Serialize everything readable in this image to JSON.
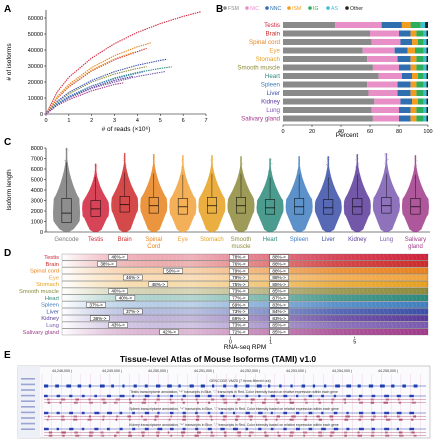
{
  "panels": {
    "A": {
      "letter": "A",
      "ylabel": "# of isoforms",
      "xlabel": "# of reads (×10⁶)",
      "yticks": [
        "0",
        "10000",
        "20000",
        "30000",
        "40000",
        "50000",
        "60000"
      ],
      "xticks": [
        "0",
        "1",
        "2",
        "3",
        "4",
        "5",
        "6",
        "7"
      ]
    },
    "B": {
      "letter": "B",
      "legend": [
        {
          "label": "FSM",
          "color": "#8a8a8a"
        },
        {
          "label": "NIC",
          "color": "#e88fc8"
        },
        {
          "label": "NNC",
          "color": "#2f6fb0"
        },
        {
          "label": "ISM",
          "color": "#f39c1f"
        },
        {
          "label": "IG",
          "color": "#2fae5a"
        },
        {
          "label": "AS",
          "color": "#3bc0d6"
        },
        {
          "label": "Other",
          "color": "#222222"
        }
      ],
      "xlabel": "Percent",
      "xticks": [
        "0",
        "20",
        "40",
        "60",
        "80",
        "100"
      ]
    },
    "C": {
      "letter": "C",
      "ylabel": "Isoform length",
      "yticks": [
        "0",
        "1000",
        "2000",
        "3000",
        "4000",
        "5000",
        "6000",
        "7000",
        "8000"
      ]
    },
    "D": {
      "letter": "D",
      "xlabel": "RNA-seq RPM",
      "xticks": [
        "0",
        "1",
        "5"
      ]
    },
    "E": {
      "letter": "E",
      "title": "Tissue-level Atlas of Mouse Isoforms (TAMI) v1.0",
      "track_label": "GENCODE VM25 (7 items filtered out)",
      "annotations": [
        "Testis transcriptome annotation, \"+\" transcripts in Blue, \"-\" transcripts in Red. Color intensity based on relative expression within each gene",
        "Spleen transcriptome annotation, \"+\" transcripts in Blue, \"-\" transcripts in Red. Color intensity based on relative expression within each gene",
        "Kidney transcriptome annotation, \"+\" transcripts in Blue, \"-\" transcripts in Red. Color intensity based on relative expression within each gene"
      ],
      "coords": [
        "44,246,000 |",
        "44,249,000 |",
        "44,250,000 |",
        "44,251,000 |",
        "44,252,000 |",
        "44,253,000 |",
        "44,254,000 |",
        "44,255,000 |"
      ]
    }
  },
  "chart_data": [
    {
      "panel": "A",
      "type": "line",
      "xlabel": "# of reads (×10⁶)",
      "ylabel": "# of isoforms",
      "xlim": [
        0,
        7
      ],
      "ylim": [
        0,
        65000
      ],
      "series": [
        {
          "color": "#d0233a",
          "x": [
            0,
            0.5,
            1,
            2,
            3,
            4,
            5,
            6,
            6.8
          ],
          "y": [
            0,
            14000,
            23000,
            35000,
            44000,
            51000,
            56500,
            61000,
            64000
          ]
        },
        {
          "color": "#e8821c",
          "x": [
            0,
            0.5,
            1,
            2,
            3,
            4,
            4.6
          ],
          "y": [
            0,
            11000,
            18500,
            29000,
            36500,
            42000,
            44500
          ]
        },
        {
          "color": "#cc2a2a",
          "x": [
            0,
            0.5,
            1,
            2,
            3,
            4,
            4.4
          ],
          "y": [
            0,
            10000,
            17000,
            27000,
            34000,
            39000,
            41000
          ]
        },
        {
          "color": "#f1a23c",
          "x": [
            0,
            0.5,
            1,
            2,
            3,
            3.8
          ],
          "y": [
            0,
            10500,
            17500,
            27500,
            34500,
            38500
          ]
        },
        {
          "color": "#3a4fa8",
          "x": [
            0,
            0.5,
            1,
            2,
            3,
            4,
            5,
            5.3
          ],
          "y": [
            0,
            8000,
            13500,
            21000,
            26500,
            30500,
            33500,
            34200
          ]
        },
        {
          "color": "#8c8a3a",
          "x": [
            0,
            0.5,
            1,
            2,
            3,
            4,
            4.4
          ],
          "y": [
            0,
            7500,
            12500,
            20000,
            25000,
            28500,
            29600
          ]
        },
        {
          "color": "#2b8a7a",
          "x": [
            0,
            0.5,
            1,
            2,
            3,
            4,
            5,
            5.5
          ],
          "y": [
            0,
            6500,
            11000,
            17500,
            22500,
            26000,
            28500,
            29500
          ]
        },
        {
          "color": "#5a3a9a",
          "x": [
            0,
            0.5,
            1,
            2,
            3,
            3.8
          ],
          "y": [
            0,
            6000,
            10500,
            16500,
            21000,
            23500
          ]
        },
        {
          "color": "#7a5ab0",
          "x": [
            0,
            0.5,
            1,
            2,
            3,
            4,
            5,
            5.2
          ],
          "y": [
            0,
            6000,
            10000,
            16000,
            20000,
            23500,
            26000,
            26500
          ]
        },
        {
          "color": "#3f7ec0",
          "x": [
            0,
            0.5,
            1,
            2,
            3,
            4,
            4.3
          ],
          "y": [
            0,
            6500,
            11000,
            17500,
            22000,
            25500,
            26500
          ]
        },
        {
          "color": "#a03a8a",
          "x": [
            0,
            0.5,
            1,
            2,
            3,
            3.4
          ],
          "y": [
            0,
            5500,
            9000,
            14500,
            18500,
            19500
          ]
        }
      ]
    },
    {
      "panel": "B",
      "type": "bar",
      "orientation": "horizontal",
      "stacked": true,
      "xlabel": "Percent",
      "xlim": [
        0,
        100
      ],
      "categories": [
        "Testis",
        "Brain",
        "Spinal cord",
        "Eye",
        "Stomach",
        "Smooth muscle",
        "Heart",
        "Spleen",
        "Liver",
        "Kidney",
        "Lung",
        "Salivary gland"
      ],
      "category_colors": [
        "#d0233a",
        "#cc2a2a",
        "#e8821c",
        "#f1a23c",
        "#e6a020",
        "#8c8a3a",
        "#2b8a7a",
        "#3f7ec0",
        "#3a4fa8",
        "#5a3a9a",
        "#7a5ab0",
        "#a03a8a"
      ],
      "series": [
        {
          "name": "FSM",
          "color": "#8a8a8a",
          "values": [
            36,
            60,
            61,
            55,
            58,
            62,
            66,
            58,
            59,
            63,
            61,
            62
          ]
        },
        {
          "name": "NIC",
          "color": "#e88fc8",
          "values": [
            32,
            20,
            20,
            22,
            21,
            18,
            16,
            21,
            20,
            18,
            19,
            18
          ]
        },
        {
          "name": "NNC",
          "color": "#2f6fb0",
          "values": [
            14,
            8,
            8,
            9,
            9,
            8,
            7,
            9,
            9,
            8,
            8,
            8
          ]
        },
        {
          "name": "ISM",
          "color": "#f39c1f",
          "values": [
            6,
            4,
            4,
            5,
            4,
            4,
            4,
            4,
            4,
            4,
            4,
            4
          ]
        },
        {
          "name": "IG",
          "color": "#2fae5a",
          "values": [
            7,
            5,
            4,
            6,
            5,
            5,
            4,
            5,
            5,
            4,
            5,
            5
          ]
        },
        {
          "name": "AS",
          "color": "#3bc0d6",
          "values": [
            3,
            2,
            2,
            2,
            2,
            2,
            2,
            2,
            2,
            2,
            2,
            2
          ]
        },
        {
          "name": "Other",
          "color": "#222222",
          "values": [
            2,
            1,
            1,
            1,
            1,
            1,
            1,
            1,
            1,
            1,
            1,
            1
          ]
        }
      ]
    },
    {
      "panel": "C",
      "type": "violin",
      "ylabel": "Isoform length",
      "ylim": [
        0,
        8000
      ],
      "categories": [
        "Gencode",
        "Testis",
        "Brain",
        "Spinal Cord",
        "Eye",
        "Stomach",
        "Smooth muscle",
        "Heart",
        "Spleen",
        "Liver",
        "Kidney",
        "Lung",
        "Salivary gland"
      ],
      "colors": [
        "#7a7a7a",
        "#d0233a",
        "#cc2a2a",
        "#e8821c",
        "#f1a23c",
        "#e6a020",
        "#8c8a3a",
        "#2b8a7a",
        "#3f7ec0",
        "#3a4fa8",
        "#5a3a9a",
        "#7a5ab0",
        "#a03a8a"
      ],
      "medians": [
        1800,
        2200,
        2600,
        2500,
        2400,
        2500,
        2500,
        2300,
        2400,
        2300,
        2400,
        2500,
        2400
      ],
      "q1": [
        900,
        1500,
        1900,
        1800,
        1700,
        1800,
        1800,
        1700,
        1700,
        1700,
        1700,
        1800,
        1700
      ],
      "q3": [
        3200,
        3000,
        3400,
        3300,
        3200,
        3300,
        3300,
        3100,
        3200,
        3100,
        3200,
        3300,
        3200
      ],
      "max": [
        8000,
        6500,
        7500,
        7400,
        7300,
        7300,
        7200,
        7000,
        7200,
        7200,
        7400,
        7500,
        7300
      ]
    },
    {
      "panel": "D",
      "type": "heatmap",
      "xlabel": "RNA-seq RPM",
      "categories": [
        "Testis",
        "Brain",
        "Spinal cord",
        "Eye",
        "Stomach",
        "Smooth muscle",
        "Heart",
        "Spleen",
        "Liver",
        "Kidney",
        "Lung",
        "Salivary gland"
      ],
      "colors": [
        "#d0233a",
        "#cc2a2a",
        "#e8821c",
        "#f1a23c",
        "#e6a020",
        "#8c8a3a",
        "#2b8a7a",
        "#3f7ec0",
        "#3a4fa8",
        "#5a3a9a",
        "#7a5ab0",
        "#a03a8a"
      ],
      "threshold_pcts": [
        [
          "46%->",
          "78%->",
          "88%->"
        ],
        [
          "38%->",
          "76%->",
          "88%->"
        ],
        [
          "50%->",
          "79%->",
          "88%->"
        ],
        [
          "46%->",
          "79%->",
          "88%->"
        ],
        [
          "48%->",
          "75%->",
          "85%->"
        ],
        [
          "40%->",
          "73%->",
          "85%->"
        ],
        [
          "40%->",
          "77%->",
          "87%->"
        ],
        [
          "37%->",
          "69%->",
          "83%->"
        ],
        [
          "37%->",
          "73%->",
          "84%->"
        ],
        [
          "36%->",
          "69%->",
          "83%->"
        ],
        [
          "43%->",
          "73%->",
          "85%->"
        ],
        [
          "42%->",
          "72%->",
          "85%->"
        ]
      ],
      "threshold_x": [
        [
          0.13,
          0.46,
          0.57
        ],
        [
          0.1,
          0.46,
          0.57
        ],
        [
          0.28,
          0.46,
          0.57
        ],
        [
          0.17,
          0.46,
          0.57
        ],
        [
          0.24,
          0.46,
          0.57
        ],
        [
          0.13,
          0.46,
          0.57
        ],
        [
          0.15,
          0.46,
          0.57
        ],
        [
          0.07,
          0.46,
          0.57
        ],
        [
          0.17,
          0.46,
          0.57
        ],
        [
          0.08,
          0.46,
          0.57
        ],
        [
          0.13,
          0.46,
          0.57
        ],
        [
          0.27,
          0.46,
          0.57
        ]
      ]
    }
  ]
}
